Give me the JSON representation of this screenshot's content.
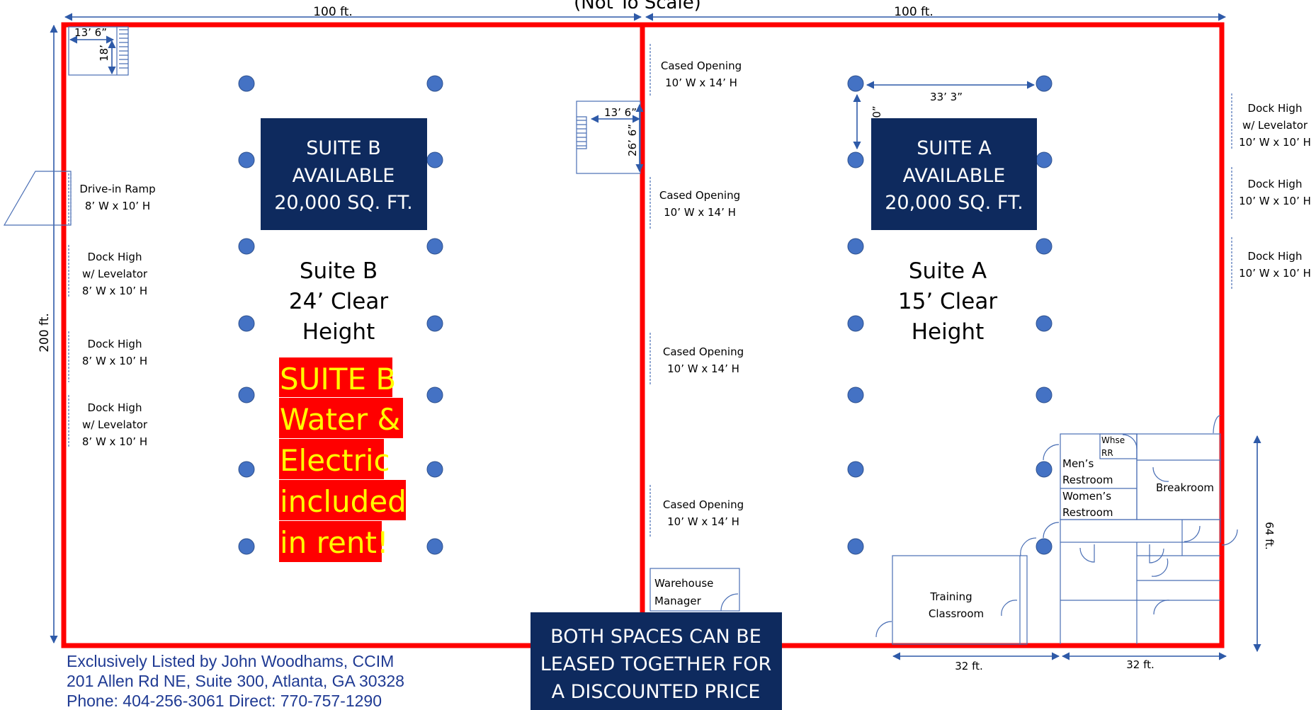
{
  "header": {
    "scale_note": "(Not To Scale)",
    "width_left": "100 ft.",
    "width_right": "100 ft.",
    "depth": "200 ft."
  },
  "suite_b": {
    "box_line1": "SUITE B",
    "box_line2": "AVAILABLE",
    "box_line3": "20,000 SQ. FT.",
    "name": "Suite B",
    "clear_height": "24’ Clear",
    "height_word": "Height",
    "promo": [
      "SUITE B",
      "Water &",
      "Electric",
      "included",
      "in rent!"
    ]
  },
  "suite_a": {
    "box_line1": "SUITE A",
    "box_line2": "AVAILABLE",
    "box_line3": "20,000 SQ. FT.",
    "name": "Suite A",
    "clear_height": "15’ Clear",
    "height_word": "Height"
  },
  "left_doors": [
    {
      "line1": "Drive-in Ramp",
      "line2": "8’ W x 10’ H"
    },
    {
      "line1": "Dock High",
      "line2": "w/ Levelator",
      "line3": "8’ W x 10’ H"
    },
    {
      "line1": "Dock High",
      "line2": "8’ W x 10’ H"
    },
    {
      "line1": "Dock High",
      "line2": "w/ Levelator",
      "line3": "8’ W x 10’ H"
    }
  ],
  "cased_openings": [
    {
      "line1": "Cased Opening",
      "line2": "10’ W x 14’ H"
    },
    {
      "line1": "Cased Opening",
      "line2": "10’ W x 14’ H"
    },
    {
      "line1": "Cased Opening",
      "line2": "10’ W x 14’ H"
    },
    {
      "line1": "Cased Opening",
      "line2": "10’ W x 14’ H"
    }
  ],
  "right_doors": [
    {
      "line1": "Dock High",
      "line2": "w/ Levelator",
      "line3": "10’ W x 10’ H"
    },
    {
      "line1": "Dock High",
      "line2": "10’ W x 10’ H"
    },
    {
      "line1": "Dock High",
      "line2": "10’ W x 10’ H"
    }
  ],
  "dimensions": {
    "mezz_left_w": "13’ 6”",
    "mezz_left_d": "18’",
    "mezz_mid_w": "13’ 6”",
    "mezz_mid_d": "26’ 6”",
    "column_spacing": "33’ 3”",
    "column_vertical": "0”",
    "office_w1": "32 ft.",
    "office_w2": "32 ft.",
    "office_d": "64 ft."
  },
  "rooms": {
    "whse_rr_1": "Whse",
    "whse_rr_2": "RR",
    "mens_1": "Men’s",
    "mens_2": "Restroom",
    "womens_1": "Women’s",
    "womens_2": "Restroom",
    "breakroom": "Breakroom",
    "training_1": "Training",
    "training_2": "Classroom",
    "warehouse_mgr_1": "Warehouse",
    "warehouse_mgr_2": "Manager"
  },
  "banner": {
    "line1": "BOTH SPACES CAN BE",
    "line2": "LEASED TOGETHER FOR",
    "line3": "A DISCOUNTED PRICE"
  },
  "footer": {
    "line1": "Exclusively Listed by John Woodhams, CCIM",
    "line2": "201 Allen Rd NE, Suite 300, Atlanta, GA 30328",
    "line3": "Phone: 404-256-3061 Direct: 770-757-1290"
  },
  "colors": {
    "walls": "#ff0000",
    "suite_box": "#0e2a5e",
    "promo_bg": "#ff0000",
    "promo_text": "#ffff00",
    "columns": "#4472c4",
    "footer_text": "#1f3a93"
  }
}
